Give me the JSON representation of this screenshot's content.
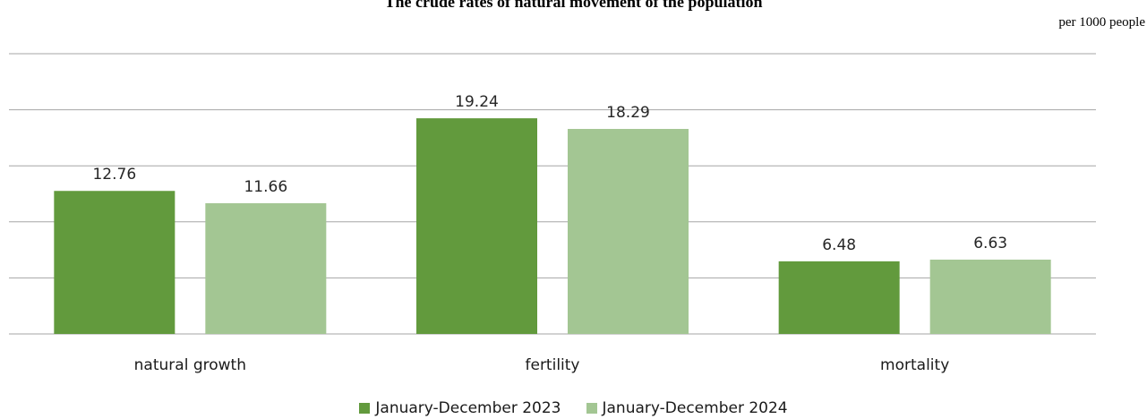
{
  "chart_data": {
    "type": "bar",
    "title": "The crude rates of natural movement of the population",
    "unit_label": "per 1000 people",
    "categories": [
      "natural growth",
      "fertility",
      "mortality"
    ],
    "series": [
      {
        "name": "January-December 2023",
        "values": [
          12.76,
          19.24,
          6.48
        ],
        "color": "#629a3d"
      },
      {
        "name": "January-December 2024",
        "values": [
          11.66,
          18.29,
          6.63
        ],
        "color": "#a3c693"
      }
    ],
    "ylim": [
      0,
      25
    ],
    "gridline_step": 5,
    "grid": true,
    "y_tick_labels_shown": false,
    "legend_position": "bottom",
    "gridline_color": "#a6a6a6"
  }
}
